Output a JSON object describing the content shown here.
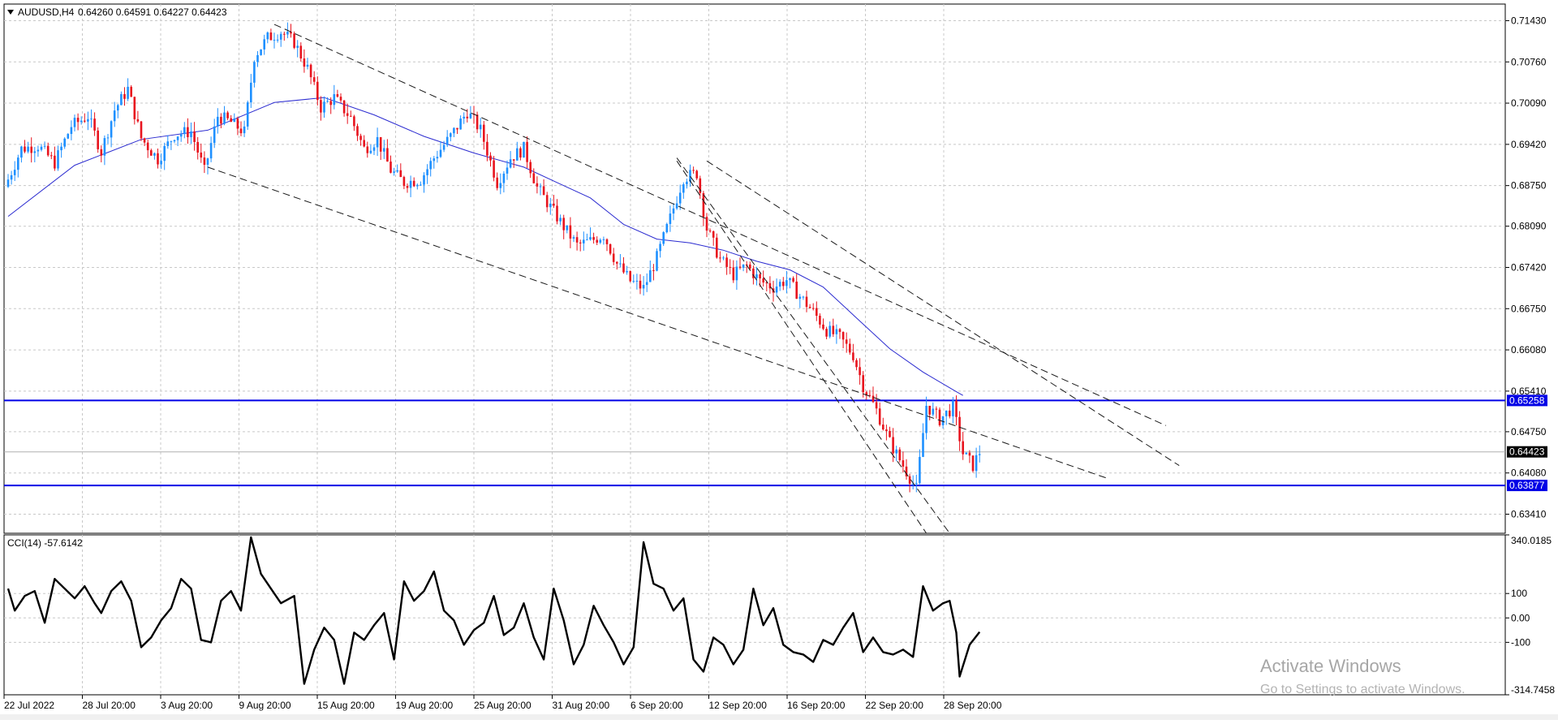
{
  "chart_header": {
    "symbol_label": "AUDUSD,H4",
    "ohlc_text": "0.64260 0.64591 0.64227 0.64423"
  },
  "colors": {
    "bull": "#1e90ff",
    "bear": "#e8141e",
    "ma": "#2b2bd0",
    "level_line": "#0000e6",
    "grid": "#c8c8c8",
    "trend_line": "#1a1a1a",
    "cci_line": "#000000",
    "current_price_tag": "#000000"
  },
  "chart_data": [
    {
      "type": "candlestick",
      "title": "AUDUSD,H4",
      "y_ticks": [
        "0.71430",
        "0.70760",
        "0.70090",
        "0.69420",
        "0.68750",
        "0.68090",
        "0.67420",
        "0.66750",
        "0.66080",
        "0.65410",
        "0.64750",
        "0.64080",
        "0.63410"
      ],
      "ylim": [
        0.631,
        0.717
      ],
      "x_tick_labels": [
        "22 Jul 2022",
        "28 Jul 20:00",
        "3 Aug 20:00",
        "9 Aug 20:00",
        "15 Aug 20:00",
        "19 Aug 20:00",
        "25 Aug 20:00",
        "31 Aug 20:00",
        "6 Sep 20:00",
        "12 Sep 20:00",
        "16 Sep 20:00",
        "22 Sep 20:00",
        "28 Sep 20:00"
      ],
      "grid": true,
      "close_path": [
        [
          0,
          0.6885
        ],
        [
          4,
          0.6935
        ],
        [
          9,
          0.694
        ],
        [
          14,
          0.6912
        ],
        [
          19,
          0.6972
        ],
        [
          24,
          0.6988
        ],
        [
          28,
          0.693
        ],
        [
          32,
          0.6998
        ],
        [
          36,
          0.7032
        ],
        [
          40,
          0.6952
        ],
        [
          45,
          0.6918
        ],
        [
          50,
          0.6958
        ],
        [
          55,
          0.6963
        ],
        [
          59,
          0.6898
        ],
        [
          63,
          0.6988
        ],
        [
          67,
          0.6978
        ],
        [
          71,
          0.6962
        ],
        [
          74,
          0.7085
        ],
        [
          78,
          0.7115
        ],
        [
          82,
          0.7125
        ],
        [
          86,
          0.7108
        ],
        [
          90,
          0.7065
        ],
        [
          94,
          0.7002
        ],
        [
          98,
          0.7018
        ],
        [
          103,
          0.6985
        ],
        [
          107,
          0.6935
        ],
        [
          111,
          0.695
        ],
        [
          115,
          0.69
        ],
        [
          119,
          0.688
        ],
        [
          124,
          0.6885
        ],
        [
          128,
          0.692
        ],
        [
          133,
          0.6955
        ],
        [
          138,
          0.6995
        ],
        [
          142,
          0.6965
        ],
        [
          147,
          0.688
        ],
        [
          151,
          0.692
        ],
        [
          155,
          0.6935
        ],
        [
          159,
          0.6872
        ],
        [
          163,
          0.684
        ],
        [
          167,
          0.6808
        ],
        [
          171,
          0.6778
        ],
        [
          175,
          0.6785
        ],
        [
          179,
          0.6795
        ],
        [
          183,
          0.6748
        ],
        [
          187,
          0.672
        ],
        [
          191,
          0.6708
        ],
        [
          195,
          0.6758
        ],
        [
          199,
          0.6822
        ],
        [
          203,
          0.6888
        ],
        [
          207,
          0.6895
        ],
        [
          210,
          0.6805
        ],
        [
          214,
          0.6755
        ],
        [
          218,
          0.673
        ],
        [
          222,
          0.6745
        ],
        [
          226,
          0.672
        ],
        [
          230,
          0.671
        ],
        [
          234,
          0.6722
        ],
        [
          238,
          0.6695
        ],
        [
          242,
          0.667
        ],
        [
          246,
          0.664
        ],
        [
          250,
          0.6628
        ],
        [
          254,
          0.66
        ],
        [
          257,
          0.655
        ],
        [
          261,
          0.651
        ],
        [
          265,
          0.6458
        ],
        [
          269,
          0.642
        ],
        [
          273,
          0.6382
        ],
        [
          276,
          0.6518
        ],
        [
          280,
          0.6495
        ],
        [
          284,
          0.6515
        ],
        [
          287,
          0.644
        ],
        [
          290,
          0.642
        ],
        [
          292,
          0.6442
        ]
      ],
      "moving_average": [
        [
          0,
          0.6825
        ],
        [
          20,
          0.6908
        ],
        [
          40,
          0.695
        ],
        [
          60,
          0.6965
        ],
        [
          80,
          0.701
        ],
        [
          95,
          0.7018
        ],
        [
          110,
          0.699
        ],
        [
          125,
          0.6955
        ],
        [
          140,
          0.6928
        ],
        [
          155,
          0.6905
        ],
        [
          165,
          0.688
        ],
        [
          175,
          0.6855
        ],
        [
          185,
          0.6812
        ],
        [
          195,
          0.6788
        ],
        [
          205,
          0.6782
        ],
        [
          215,
          0.677
        ],
        [
          225,
          0.6752
        ],
        [
          235,
          0.6738
        ],
        [
          245,
          0.671
        ],
        [
          255,
          0.666
        ],
        [
          265,
          0.661
        ],
        [
          275,
          0.6572
        ],
        [
          285,
          0.654
        ],
        [
          287,
          0.6534
        ]
      ],
      "trend_lines": [
        [
          [
            80,
            0.7137
          ],
          [
            348,
            0.6485
          ]
        ],
        [
          [
            60,
            0.6905
          ],
          [
            330,
            0.64
          ]
        ],
        [
          [
            201,
            0.6915
          ],
          [
            276,
            0.631
          ]
        ],
        [
          [
            201,
            0.692
          ],
          [
            283,
            0.631
          ]
        ],
        [
          [
            210,
            0.6915
          ],
          [
            352,
            0.642
          ]
        ]
      ],
      "horizontal_levels": [
        "0.65258",
        "0.63877"
      ],
      "current_price": "0.64423"
    },
    {
      "type": "line",
      "title": "CCI(14) -57.6142",
      "y_ticks_text": [
        "340.0185",
        "100",
        "0.00",
        "-100",
        "-314.7458"
      ],
      "ylim": [
        -314.7458,
        340.0185
      ],
      "series": [
        {
          "name": "CCI(14) -57.6142",
          "values": [
            [
              0,
              120
            ],
            [
              2,
              30
            ],
            [
              5,
              90
            ],
            [
              8,
              110
            ],
            [
              11,
              -20
            ],
            [
              14,
              160
            ],
            [
              17,
              120
            ],
            [
              20,
              80
            ],
            [
              23,
              130
            ],
            [
              26,
              60
            ],
            [
              28,
              20
            ],
            [
              31,
              110
            ],
            [
              34,
              150
            ],
            [
              37,
              70
            ],
            [
              40,
              -120
            ],
            [
              43,
              -80
            ],
            [
              46,
              -10
            ],
            [
              49,
              40
            ],
            [
              52,
              160
            ],
            [
              55,
              120
            ],
            [
              58,
              -90
            ],
            [
              61,
              -100
            ],
            [
              64,
              70
            ],
            [
              67,
              110
            ],
            [
              70,
              30
            ],
            [
              73,
              330
            ],
            [
              76,
              180
            ],
            [
              79,
              120
            ],
            [
              82,
              60
            ],
            [
              86,
              90
            ],
            [
              89,
              -270
            ],
            [
              92,
              -130
            ],
            [
              95,
              -40
            ],
            [
              98,
              -90
            ],
            [
              101,
              -270
            ],
            [
              104,
              -60
            ],
            [
              107,
              -90
            ],
            [
              110,
              -30
            ],
            [
              113,
              20
            ],
            [
              116,
              -170
            ],
            [
              119,
              150
            ],
            [
              122,
              70
            ],
            [
              125,
              110
            ],
            [
              128,
              190
            ],
            [
              131,
              30
            ],
            [
              134,
              -10
            ],
            [
              137,
              -110
            ],
            [
              140,
              -50
            ],
            [
              143,
              -20
            ],
            [
              146,
              90
            ],
            [
              149,
              -70
            ],
            [
              152,
              -40
            ],
            [
              155,
              60
            ],
            [
              158,
              -80
            ],
            [
              161,
              -170
            ],
            [
              164,
              120
            ],
            [
              167,
              -10
            ],
            [
              170,
              -190
            ],
            [
              173,
              -110
            ],
            [
              176,
              50
            ],
            [
              179,
              -30
            ],
            [
              182,
              -100
            ],
            [
              185,
              -190
            ],
            [
              188,
              -120
            ],
            [
              191,
              310
            ],
            [
              194,
              140
            ],
            [
              197,
              120
            ],
            [
              200,
              30
            ],
            [
              203,
              80
            ],
            [
              206,
              -170
            ],
            [
              209,
              -220
            ],
            [
              212,
              -80
            ],
            [
              215,
              -110
            ],
            [
              218,
              -190
            ],
            [
              221,
              -130
            ],
            [
              224,
              120
            ],
            [
              227,
              -30
            ],
            [
              230,
              40
            ],
            [
              233,
              -110
            ],
            [
              236,
              -140
            ],
            [
              239,
              -150
            ],
            [
              242,
              -180
            ],
            [
              245,
              -90
            ],
            [
              248,
              -110
            ],
            [
              251,
              -40
            ],
            [
              254,
              20
            ],
            [
              257,
              -140
            ],
            [
              260,
              -80
            ],
            [
              263,
              -140
            ],
            [
              266,
              -150
            ],
            [
              269,
              -130
            ],
            [
              272,
              -160
            ],
            [
              275,
              130
            ],
            [
              278,
              30
            ],
            [
              281,
              60
            ],
            [
              283,
              70
            ],
            [
              285,
              -60
            ],
            [
              286,
              -240
            ],
            [
              289,
              -110
            ],
            [
              292,
              -57.6
            ]
          ]
        }
      ]
    }
  ],
  "watermark": {
    "title": "Activate Windows",
    "subtitle": "Go to Settings to activate Windows."
  }
}
